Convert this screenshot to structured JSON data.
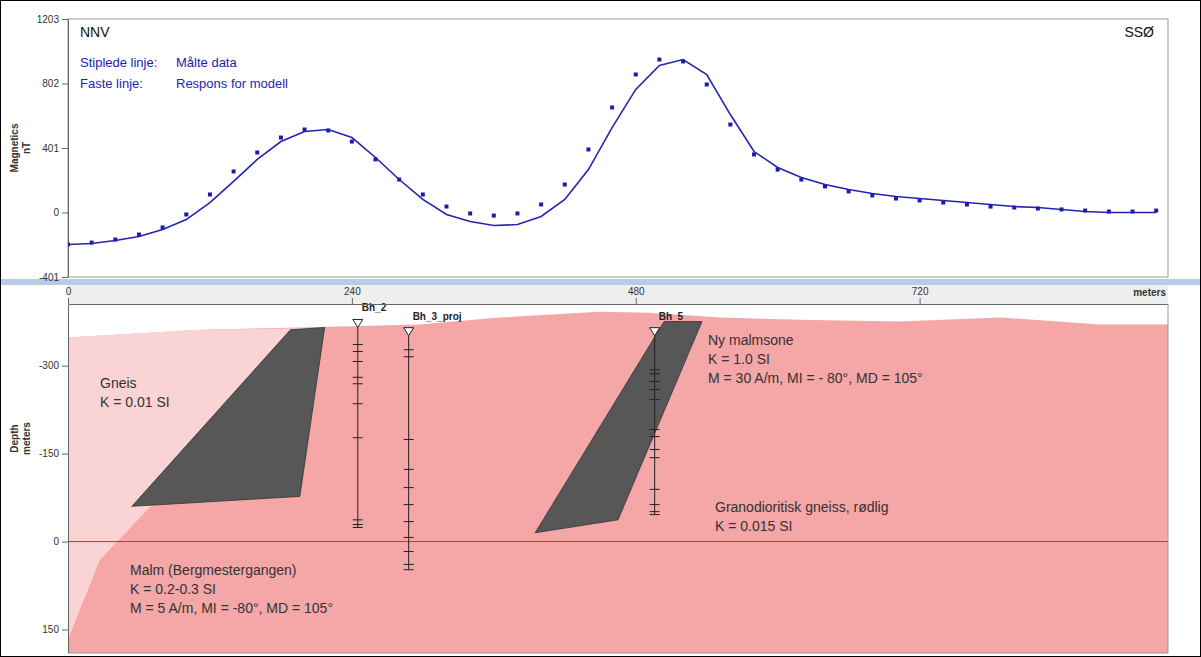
{
  "chart_data": [
    {
      "type": "line",
      "annotations": [
        "NNV",
        "SSØ"
      ],
      "ylabel": [
        "Magnetics",
        "nT"
      ],
      "legend": "upper left",
      "tick_labels": "y",
      "xlim": [
        0,
        930
      ],
      "ylim": [
        -401,
        1203
      ],
      "yticks": [
        -401,
        0,
        401,
        802,
        1203
      ],
      "x": [
        0,
        20,
        40,
        60,
        80,
        100,
        120,
        140,
        160,
        180,
        200,
        220,
        240,
        260,
        280,
        300,
        320,
        340,
        360,
        380,
        400,
        420,
        440,
        460,
        480,
        500,
        520,
        540,
        560,
        580,
        600,
        620,
        640,
        660,
        680,
        700,
        720,
        740,
        760,
        780,
        800,
        820,
        840,
        860,
        880,
        900,
        920
      ],
      "series": [
        {
          "name": "Målte data",
          "legend_key": "Stiplede linje:",
          "color": "#1c1ca8",
          "marker": "square",
          "line_style": "none",
          "values": [
            -199,
            -187,
            -168,
            -137,
            -93,
            -12,
            112,
            255,
            373,
            466,
            516,
            510,
            441,
            330,
            205,
            112,
            37,
            -6,
            -19,
            -6,
            50,
            174,
            392,
            653,
            858,
            951,
            939,
            796,
            547,
            361,
            267,
            205,
            162,
            131,
            106,
            87,
            75,
            62,
            50,
            37,
            31,
            25,
            19,
            12,
            6,
            6,
            12
          ]
        },
        {
          "name": "Respons for modell",
          "legend_key": "Faste linje:",
          "color": "#2424b4",
          "marker": "none",
          "line_style": "solid",
          "values": [
            -199,
            -193,
            -174,
            -149,
            -106,
            -44,
            62,
            193,
            330,
            441,
            504,
            516,
            466,
            342,
            205,
            81,
            -12,
            -56,
            -81,
            -75,
            -25,
            81,
            267,
            528,
            765,
            914,
            951,
            858,
            609,
            379,
            280,
            218,
            174,
            143,
            118,
            99,
            87,
            75,
            62,
            50,
            37,
            31,
            19,
            6,
            0,
            0,
            0
          ]
        }
      ]
    },
    {
      "type": "section",
      "xlabel": "meters",
      "ylabel": [
        "Depth",
        "meters"
      ],
      "xlim": [
        0,
        930
      ],
      "ylim": [
        -405,
        190
      ],
      "xticks": [
        0,
        240,
        480,
        720
      ],
      "yticks": [
        -300,
        -150,
        0,
        150
      ],
      "hlines": [
        0
      ],
      "units": [
        {
          "name": "Granodioritisk gneiss, rødlig",
          "properties": [
            "K = 0.015 SI"
          ],
          "color": "#f5a6a6",
          "x": [
            0,
            112,
            196,
            297,
            365,
            449,
            492,
            551,
            618,
            703,
            788,
            872,
            931,
            931,
            0
          ],
          "y": [
            -348,
            -361,
            -365,
            -370,
            -382,
            -392,
            -390,
            -382,
            -378,
            -375,
            -382,
            -370,
            -370,
            190,
            190
          ]
        },
        {
          "name": "Gneis",
          "properties": [
            "K = 0.01 SI"
          ],
          "color": "#fad4d4",
          "x": [
            0,
            112,
            213,
            27,
            0
          ],
          "y": [
            -348,
            -361,
            -364,
            31,
            167
          ]
        },
        {
          "name": "Malm (Bergmestergangen)",
          "properties": [
            "K = 0.2-0.3 SI",
            "M = 5 A/m, MI = -80°, MD = 105°"
          ],
          "color": "#575757",
          "x": [
            188,
            217,
            196,
            54
          ],
          "y": [
            -361,
            -365,
            -77,
            -60
          ]
        },
        {
          "name": "Ny malmsone",
          "properties": [
            "K = 1.0 SI",
            "M = 30 A/m, MI = - 80°, MD = 105°"
          ],
          "color": "#575757",
          "x": [
            504,
            536,
            465,
            395
          ],
          "y": [
            -375,
            -375,
            -37,
            -15
          ]
        }
      ],
      "boreholes": [
        {
          "name": "Bh_2",
          "x": 245,
          "top": -365,
          "bottom": -24,
          "samples": [
            -336,
            -324,
            -307,
            -280,
            -269,
            -235,
            -177,
            -37,
            -29
          ]
        },
        {
          "name": "Bh_3_proj",
          "x": 288,
          "top": -351,
          "bottom": 48,
          "samples": [
            -327,
            -315,
            -174,
            -123,
            -92,
            -63,
            -34,
            -7,
            17,
            39
          ]
        },
        {
          "name": "Bh_5",
          "x": 496,
          "top": -351,
          "bottom": -46,
          "samples": [
            -293,
            -286,
            -273,
            -259,
            -242,
            -191,
            -179,
            -157,
            -143,
            -89,
            -63,
            -51
          ]
        }
      ]
    }
  ]
}
